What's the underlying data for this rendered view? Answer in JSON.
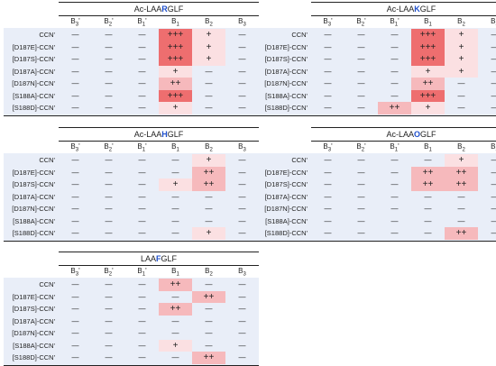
{
  "columns": [
    "B3'",
    "B2'",
    "B1'",
    "B1",
    "B2",
    "B3"
  ],
  "colors": {
    "grid_bg": "#e9eef8",
    "plus1": "#fbe0e2",
    "plus2": "#f6b9bc",
    "plus3": "#ee6e6f",
    "title_highlight_r": "#1f4fcc",
    "title_highlight_k": "#1f4fcc",
    "title_highlight_h": "#1f4fcc",
    "title_highlight_o": "#1f4fcc",
    "title_highlight_f": "#1f4fcc"
  },
  "panels": [
    {
      "id": "ac-laargfl",
      "title_prefix": "Ac-LAA",
      "title_highlight": "R",
      "title_suffix": "GLF",
      "rows": [
        {
          "label": "CCN'",
          "cells": [
            "—",
            "—",
            "—",
            "+++",
            "+",
            "—"
          ]
        },
        {
          "label": "[D187E]-CCN'",
          "cells": [
            "—",
            "—",
            "—",
            "+++",
            "+",
            "—"
          ]
        },
        {
          "label": "[D187S]-CCN'",
          "cells": [
            "—",
            "—",
            "—",
            "+++",
            "+",
            "—"
          ]
        },
        {
          "label": "[D187A]-CCN'",
          "cells": [
            "—",
            "—",
            "—",
            "+",
            "—",
            "—"
          ]
        },
        {
          "label": "[D187N]-CCN'",
          "cells": [
            "—",
            "—",
            "—",
            "++",
            "—",
            "—"
          ]
        },
        {
          "label": "[S188A]-CCN'",
          "cells": [
            "—",
            "—",
            "—",
            "+++",
            "—",
            "—"
          ]
        },
        {
          "label": "[S188D]-CCN'",
          "cells": [
            "—",
            "—",
            "—",
            "+",
            "—",
            "—"
          ]
        }
      ]
    },
    {
      "id": "ac-laakgfl",
      "title_prefix": "Ac-LAA",
      "title_highlight": "K",
      "title_suffix": "GLF",
      "rows": [
        {
          "label": "CCN'",
          "cells": [
            "—",
            "—",
            "—",
            "+++",
            "+",
            "—"
          ]
        },
        {
          "label": "[D187E]-CCN'",
          "cells": [
            "—",
            "—",
            "—",
            "+++",
            "+",
            "—"
          ]
        },
        {
          "label": "[D187S]-CCN'",
          "cells": [
            "—",
            "—",
            "—",
            "+++",
            "+",
            "—"
          ]
        },
        {
          "label": "[D187A]-CCN'",
          "cells": [
            "—",
            "—",
            "—",
            "+",
            "+",
            "—"
          ]
        },
        {
          "label": "[D187N]-CCN'",
          "cells": [
            "—",
            "—",
            "—",
            "++",
            "—",
            "—"
          ]
        },
        {
          "label": "[S188A]-CCN'",
          "cells": [
            "—",
            "—",
            "—",
            "+++",
            "—",
            "—"
          ]
        },
        {
          "label": "[S188D]-CCN'",
          "cells": [
            "—",
            "—",
            "++",
            "+",
            "—",
            "—"
          ]
        }
      ]
    },
    {
      "id": "ac-laahgfl",
      "title_prefix": "Ac-LAA",
      "title_highlight": "H",
      "title_suffix": "GLF",
      "rows": [
        {
          "label": "CCN'",
          "cells": [
            "—",
            "—",
            "—",
            "—",
            "+",
            "—"
          ]
        },
        {
          "label": "[D187E]-CCN'",
          "cells": [
            "—",
            "—",
            "—",
            "—",
            "++",
            "—"
          ]
        },
        {
          "label": "[D187S]-CCN'",
          "cells": [
            "—",
            "—",
            "—",
            "+",
            "++",
            "—"
          ]
        },
        {
          "label": "[D187A]-CCN'",
          "cells": [
            "—",
            "—",
            "—",
            "—",
            "—",
            "—"
          ]
        },
        {
          "label": "[D187N]-CCN'",
          "cells": [
            "—",
            "—",
            "—",
            "—",
            "—",
            "—"
          ]
        },
        {
          "label": "[S188A]-CCN'",
          "cells": [
            "—",
            "—",
            "—",
            "—",
            "—",
            "—"
          ]
        },
        {
          "label": "[S188D]-CCN'",
          "cells": [
            "—",
            "—",
            "—",
            "—",
            "+",
            "—"
          ]
        }
      ]
    },
    {
      "id": "ac-laaogfl",
      "title_prefix": "Ac-LAA",
      "title_highlight": "O",
      "title_suffix": "GLF",
      "rows": [
        {
          "label": "CCN'",
          "cells": [
            "—",
            "—",
            "—",
            "—",
            "+",
            "—"
          ]
        },
        {
          "label": "[D187E]-CCN'",
          "cells": [
            "—",
            "—",
            "—",
            "++",
            "++",
            "—"
          ]
        },
        {
          "label": "[D187S]-CCN'",
          "cells": [
            "—",
            "—",
            "—",
            "++",
            "++",
            "—"
          ]
        },
        {
          "label": "[D187A]-CCN'",
          "cells": [
            "—",
            "—",
            "—",
            "—",
            "—",
            "—"
          ]
        },
        {
          "label": "[D187N]-CCN'",
          "cells": [
            "—",
            "—",
            "—",
            "—",
            "—",
            "—"
          ]
        },
        {
          "label": "[S188A]-CCN'",
          "cells": [
            "—",
            "—",
            "—",
            "—",
            "—",
            "—"
          ]
        },
        {
          "label": "[S188D]-CCN'",
          "cells": [
            "—",
            "—",
            "—",
            "—",
            "++",
            "—"
          ]
        }
      ]
    },
    {
      "id": "laafglf",
      "title_prefix": "LAA",
      "title_highlight": "F",
      "title_suffix": "GLF",
      "rows": [
        {
          "label": "CCN'",
          "cells": [
            "—",
            "—",
            "—",
            "++",
            "—",
            "—"
          ]
        },
        {
          "label": "[D187E]-CCN'",
          "cells": [
            "—",
            "—",
            "—",
            "—",
            "++",
            "—"
          ]
        },
        {
          "label": "[D187S]-CCN'",
          "cells": [
            "—",
            "—",
            "—",
            "++",
            "—",
            "—"
          ]
        },
        {
          "label": "[D187A]-CCN'",
          "cells": [
            "—",
            "—",
            "—",
            "—",
            "—",
            "—"
          ]
        },
        {
          "label": "[D187N]-CCN'",
          "cells": [
            "—",
            "—",
            "—",
            "—",
            "—",
            "—"
          ]
        },
        {
          "label": "[S188A]-CCN'",
          "cells": [
            "—",
            "—",
            "—",
            "+",
            "—",
            "—"
          ]
        },
        {
          "label": "[S188D]-CCN'",
          "cells": [
            "—",
            "—",
            "—",
            "—",
            "++",
            "—"
          ]
        }
      ]
    }
  ]
}
